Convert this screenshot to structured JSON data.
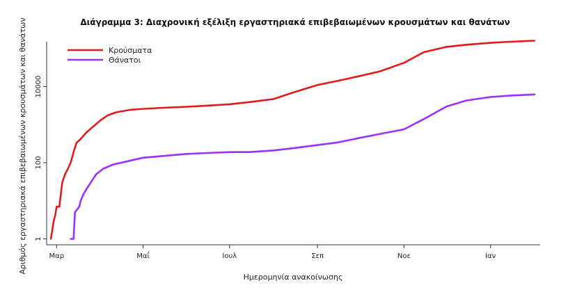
{
  "chart_data": {
    "type": "line",
    "title": "Διάγραμμα 3: Διαχρονική εξέλιξη εργαστηριακά επιβεβαιωμένων κρουσμάτων και θανάτων",
    "xlabel": "Ημερομηνία ανακοίνωσης",
    "ylabel": "Αριθμός εργαστηριακά επιβεβαιωμένων κρουσμάτων και θανάτων",
    "x_tick_labels": [
      "Μαρ",
      "Μαΐ",
      "Ιουλ",
      "Σεπ",
      "Νοε",
      "Ιαν"
    ],
    "x_ticks": [
      "2020-03-01",
      "2020-05-01",
      "2020-07-01",
      "2020-09-01",
      "2020-11-01",
      "2021-01-01"
    ],
    "xlim": [
      "2020-02-23",
      "2021-02-05"
    ],
    "y_scale": "log",
    "y_tick_labels": [
      "1",
      "100",
      "10000"
    ],
    "y_ticks": [
      1,
      100,
      10000
    ],
    "ylim": [
      0.7,
      150000
    ],
    "grid": false,
    "legend_position": "top-left",
    "series": [
      {
        "name": "Κρούσματα",
        "color": "#e31a1c",
        "points": [
          [
            "2020-02-26",
            1
          ],
          [
            "2020-02-28",
            3
          ],
          [
            "2020-02-29",
            4
          ],
          [
            "2020-03-01",
            7
          ],
          [
            "2020-03-03",
            7
          ],
          [
            "2020-03-05",
            30
          ],
          [
            "2020-03-07",
            50
          ],
          [
            "2020-03-09",
            70
          ],
          [
            "2020-03-11",
            100
          ],
          [
            "2020-03-13",
            190
          ],
          [
            "2020-03-15",
            330
          ],
          [
            "2020-03-18",
            420
          ],
          [
            "2020-03-22",
            620
          ],
          [
            "2020-03-27",
            900
          ],
          [
            "2020-04-01",
            1300
          ],
          [
            "2020-04-06",
            1750
          ],
          [
            "2020-04-12",
            2100
          ],
          [
            "2020-04-22",
            2450
          ],
          [
            "2020-05-01",
            2600
          ],
          [
            "2020-05-15",
            2760
          ],
          [
            "2020-06-01",
            2950
          ],
          [
            "2020-06-15",
            3150
          ],
          [
            "2020-07-01",
            3430
          ],
          [
            "2020-07-15",
            3900
          ],
          [
            "2020-08-01",
            4700
          ],
          [
            "2020-08-15",
            7000
          ],
          [
            "2020-09-01",
            11000
          ],
          [
            "2020-09-15",
            14000
          ],
          [
            "2020-10-01",
            19000
          ],
          [
            "2020-10-15",
            25000
          ],
          [
            "2020-11-01",
            42000
          ],
          [
            "2020-11-15",
            80000
          ],
          [
            "2020-12-01",
            110000
          ],
          [
            "2020-12-15",
            125000
          ],
          [
            "2021-01-01",
            140000
          ],
          [
            "2021-01-15",
            150000
          ],
          [
            "2021-02-01",
            160000
          ]
        ]
      },
      {
        "name": "Θάνατοι",
        "color": "#9b30ff",
        "points": [
          [
            "2020-03-11",
            1
          ],
          [
            "2020-03-13",
            1
          ],
          [
            "2020-03-14",
            5
          ],
          [
            "2020-03-17",
            7
          ],
          [
            "2020-03-18",
            10
          ],
          [
            "2020-03-20",
            15
          ],
          [
            "2020-03-22",
            20
          ],
          [
            "2020-03-25",
            30
          ],
          [
            "2020-03-29",
            50
          ],
          [
            "2020-04-03",
            70
          ],
          [
            "2020-04-10",
            90
          ],
          [
            "2020-04-18",
            105
          ],
          [
            "2020-05-01",
            135
          ],
          [
            "2020-05-15",
            150
          ],
          [
            "2020-06-01",
            170
          ],
          [
            "2020-06-15",
            180
          ],
          [
            "2020-07-01",
            190
          ],
          [
            "2020-07-15",
            190
          ],
          [
            "2020-08-01",
            210
          ],
          [
            "2020-08-15",
            240
          ],
          [
            "2020-09-01",
            290
          ],
          [
            "2020-09-15",
            340
          ],
          [
            "2020-10-01",
            450
          ],
          [
            "2020-10-15",
            570
          ],
          [
            "2020-11-01",
            750
          ],
          [
            "2020-11-15",
            1400
          ],
          [
            "2020-12-01",
            3000
          ],
          [
            "2020-12-15",
            4300
          ],
          [
            "2021-01-01",
            5300
          ],
          [
            "2021-01-15",
            5800
          ],
          [
            "2021-02-01",
            6200
          ]
        ]
      }
    ]
  }
}
